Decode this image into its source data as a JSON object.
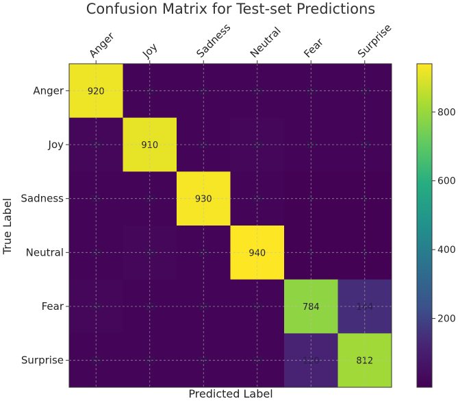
{
  "chart_data": {
    "type": "heatmap",
    "title": "Confusion Matrix for Test-set Predictions",
    "xlabel": "Predicted Label",
    "ylabel": "True Label",
    "x_categories": [
      "Anger",
      "Joy",
      "Sadness",
      "Neutral",
      "Fear",
      "Surprise"
    ],
    "y_categories": [
      "Anger",
      "Joy",
      "Sadness",
      "Neutral",
      "Fear",
      "Surprise"
    ],
    "values": [
      [
        920,
        15,
        10,
        10,
        10,
        10
      ],
      [
        20,
        910,
        15,
        20,
        10,
        15
      ],
      [
        15,
        10,
        930,
        15,
        5,
        5
      ],
      [
        10,
        20,
        15,
        940,
        5,
        5
      ],
      [
        20,
        15,
        15,
        10,
        784,
        144
      ],
      [
        15,
        10,
        15,
        10,
        120,
        812
      ]
    ],
    "colormap": "viridis",
    "colorbar": {
      "min": 0,
      "max": 940,
      "ticks": [
        200,
        400,
        600,
        800
      ]
    },
    "grid": true
  }
}
